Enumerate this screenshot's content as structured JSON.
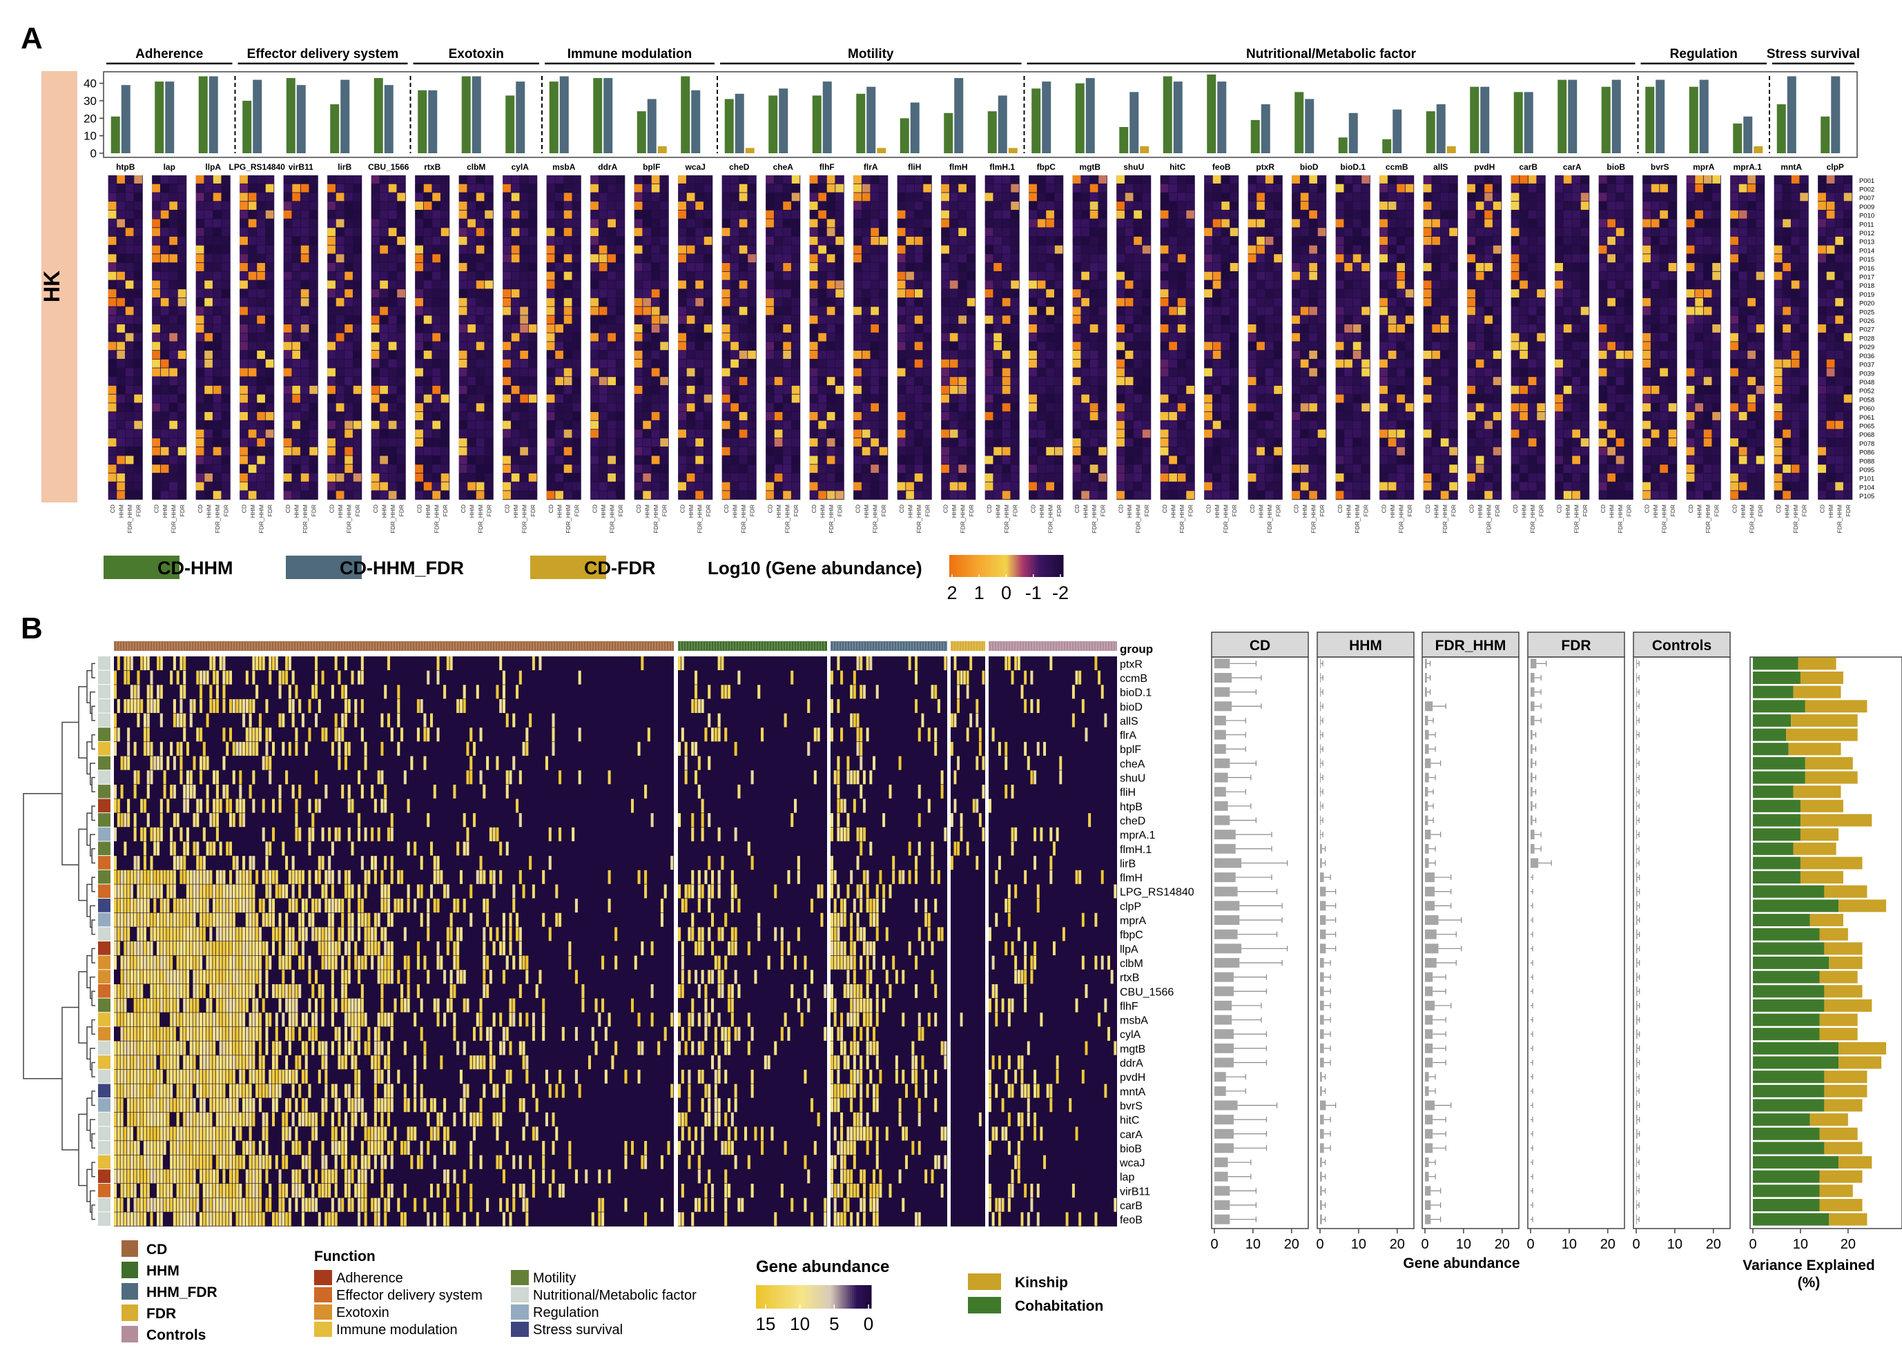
{
  "panel_a": {
    "label": "A",
    "side_label": "HK",
    "categories": [
      {
        "name": "Adherence",
        "count": 3
      },
      {
        "name": "Effector delivery system",
        "count": 4
      },
      {
        "name": "Exotoxin",
        "count": 3
      },
      {
        "name": "Immune modulation",
        "count": 4
      },
      {
        "name": "Motility",
        "count": 7
      },
      {
        "name": "Nutritional/Metabolic factor",
        "count": 14
      },
      {
        "name": "Regulation",
        "count": 3
      },
      {
        "name": "Stress survival",
        "count": 2
      }
    ],
    "y_ticks": [
      "40",
      "30",
      "20",
      "10",
      "0"
    ],
    "patients": [
      "P001",
      "P002",
      "P007",
      "P009",
      "P010",
      "P011",
      "P012",
      "P013",
      "P014",
      "P015",
      "P016",
      "P017",
      "P018",
      "P019",
      "P020",
      "P025",
      "P026",
      "P027",
      "P028",
      "P029",
      "P036",
      "P037",
      "P039",
      "P048",
      "P052",
      "P058",
      "P060",
      "P061",
      "P065",
      "P068",
      "P078",
      "P086",
      "P088",
      "P095",
      "P101",
      "P104",
      "P105"
    ],
    "columns": [
      "CD",
      "HHM",
      "FDR_HHM",
      "FDR"
    ],
    "legend": {
      "series": [
        {
          "label": "CD-HHM",
          "color": "#4a7a2e"
        },
        {
          "label": "CD-HHM_FDR",
          "color": "#4e6a7c"
        },
        {
          "label": "CD-FDR",
          "color": "#c9a227"
        }
      ],
      "scale_title": "Log10 (Gene abundance)",
      "scale_ticks": [
        "2",
        "1",
        "0",
        "-1",
        "-2"
      ]
    }
  },
  "panel_b": {
    "label": "B",
    "group_label": "group",
    "facets": [
      "CD",
      "HHM",
      "FDR_HHM",
      "FDR",
      "Controls"
    ],
    "x_ticks": [
      "0",
      "10",
      "20"
    ],
    "x_title": "Gene abundance",
    "ve_ticks": [
      "0",
      "10",
      "20"
    ],
    "ve_title_1": "Variance Explained",
    "ve_title_2": "(%)",
    "legend_groups": [
      {
        "label": "CD",
        "color": "#a0673e"
      },
      {
        "label": "HHM",
        "color": "#3e6e2a"
      },
      {
        "label": "HHM_FDR",
        "color": "#4f6b80"
      },
      {
        "label": "FDR",
        "color": "#d7ad32"
      },
      {
        "label": "Controls",
        "color": "#b38d9c"
      }
    ],
    "function_title": "Function",
    "functions": [
      {
        "label": "Adherence",
        "color": "#a63b1c"
      },
      {
        "label": "Effector delivery system",
        "color": "#cf6a26"
      },
      {
        "label": "Exotoxin",
        "color": "#d9902e"
      },
      {
        "label": "Immune modulation",
        "color": "#e5bd3b"
      },
      {
        "label": "Motility",
        "color": "#667f38"
      },
      {
        "label": "Nutritional/Metabolic factor",
        "color": "#cfd8d2"
      },
      {
        "label": "Regulation",
        "color": "#93abc0"
      },
      {
        "label": "Stress survival",
        "color": "#3d4580"
      }
    ],
    "abundance_title": "Gene abundance",
    "abundance_ticks": [
      "15",
      "10",
      "5",
      "0"
    ],
    "ve_legend": [
      {
        "label": "Kinship",
        "color": "#c9a227"
      },
      {
        "label": "Cohabitation",
        "color": "#3f7a2c"
      }
    ]
  },
  "chart_data": [
    {
      "type": "bar",
      "categories": [
        "htpB",
        "lap",
        "llpA",
        "LPG_RS14840",
        "virB11",
        "lirB",
        "CBU_1566",
        "rtxB",
        "clbM",
        "cylA",
        "msbA",
        "ddrA",
        "bplF",
        "wcaJ",
        "cheD",
        "cheA",
        "flhF",
        "flrA",
        "fliH",
        "flmH",
        "flmH.1",
        "fbpC",
        "mgtB",
        "shuU",
        "hitC",
        "feoB",
        "ptxR",
        "bioD",
        "bioD.1",
        "ccmB",
        "allS",
        "pvdH",
        "carB",
        "carA",
        "bioB",
        "bvrS",
        "mprA",
        "mprA.1",
        "mntA",
        "clpP"
      ],
      "ylim": [
        0,
        45
      ],
      "series": [
        {
          "name": "CD-HHM",
          "values": [
            21,
            41,
            44,
            30,
            43,
            28,
            43,
            36,
            44,
            33,
            41,
            43,
            24,
            44,
            31,
            33,
            33,
            34,
            20,
            23,
            24,
            37,
            40,
            15,
            44,
            45,
            19,
            35,
            9,
            8,
            24,
            38,
            35,
            42,
            38,
            38,
            38,
            17,
            28,
            21
          ]
        },
        {
          "name": "CD-HHM_FDR",
          "values": [
            39,
            41,
            44,
            42,
            39,
            42,
            39,
            36,
            44,
            41,
            44,
            43,
            31,
            36,
            34,
            37,
            41,
            38,
            29,
            43,
            33,
            41,
            43,
            35,
            41,
            41,
            28,
            31,
            23,
            25,
            28,
            38,
            35,
            42,
            42,
            42,
            42,
            21,
            44,
            44
          ]
        },
        {
          "name": "CD-FDR",
          "values": [
            0,
            0,
            0,
            0,
            0,
            0,
            0,
            0,
            0,
            0,
            0,
            0,
            4,
            0,
            3,
            0,
            0,
            3,
            0,
            0,
            3,
            0,
            0,
            4,
            0,
            0,
            0,
            0,
            0,
            0,
            4,
            0,
            0,
            0,
            0,
            0,
            0,
            4,
            0,
            0
          ]
        }
      ]
    },
    {
      "type": "heatmap",
      "title": "Log10 (Gene abundance)",
      "rows": [
        "P001",
        "P002",
        "P007",
        "P009",
        "P010",
        "P011",
        "P012",
        "P013",
        "P014",
        "P015",
        "P016",
        "P017",
        "P018",
        "P019",
        "P020",
        "P025",
        "P026",
        "P027",
        "P028",
        "P029",
        "P036",
        "P037",
        "P039",
        "P048",
        "P052",
        "P058",
        "P060",
        "P061",
        "P065",
        "P068",
        "P078",
        "P086",
        "P088",
        "P095",
        "P101",
        "P104",
        "P105"
      ],
      "columns_per_gene": [
        "CD",
        "HHM",
        "FDR_HHM",
        "FDR"
      ],
      "value_range": [
        -2,
        2
      ]
    },
    {
      "type": "heatmap",
      "title": "Gene abundance",
      "rows": [
        "ptxR",
        "ccmB",
        "bioD.1",
        "bioD",
        "allS",
        "flrA",
        "bplF",
        "cheA",
        "shuU",
        "fliH",
        "htpB",
        "cheD",
        "mprA.1",
        "flmH.1",
        "lirB",
        "flmH",
        "LPG_RS14840",
        "clpP",
        "mprA",
        "fbpC",
        "llpA",
        "clbM",
        "rtxB",
        "CBU_1566",
        "flhF",
        "msbA",
        "cylA",
        "mgtB",
        "ddrA",
        "pvdH",
        "mntA",
        "bvrS",
        "hitC",
        "carA",
        "bioB",
        "wcaJ",
        "lap",
        "virB11",
        "carB",
        "feoB"
      ],
      "row_function": [
        "Nutritional/Metabolic factor",
        "Nutritional/Metabolic factor",
        "Nutritional/Metabolic factor",
        "Nutritional/Metabolic factor",
        "Nutritional/Metabolic factor",
        "Motility",
        "Immune modulation",
        "Motility",
        "Nutritional/Metabolic factor",
        "Motility",
        "Adherence",
        "Motility",
        "Regulation",
        "Motility",
        "Effector delivery system",
        "Motility",
        "Effector delivery system",
        "Stress survival",
        "Regulation",
        "Nutritional/Metabolic factor",
        "Adherence",
        "Exotoxin",
        "Exotoxin",
        "Effector delivery system",
        "Motility",
        "Immune modulation",
        "Exotoxin",
        "Nutritional/Metabolic factor",
        "Immune modulation",
        "Nutritional/Metabolic factor",
        "Stress survival",
        "Regulation",
        "Nutritional/Metabolic factor",
        "Nutritional/Metabolic factor",
        "Nutritional/Metabolic factor",
        "Immune modulation",
        "Adherence",
        "Effector delivery system",
        "Nutritional/Metabolic factor",
        "Nutritional/Metabolic factor"
      ],
      "groups": [
        "CD",
        "HHM",
        "HHM_FDR",
        "FDR",
        "Controls"
      ],
      "value_range": [
        0,
        15
      ]
    },
    {
      "type": "bar",
      "orientation": "horizontal",
      "xlabel": "Gene abundance",
      "xlim": [
        0,
        22
      ],
      "categories": [
        "ptxR",
        "ccmB",
        "bioD.1",
        "bioD",
        "allS",
        "flrA",
        "bplF",
        "cheA",
        "shuU",
        "fliH",
        "htpB",
        "cheD",
        "mprA.1",
        "flmH.1",
        "lirB",
        "flmH",
        "LPG_RS14840",
        "clpP",
        "mprA",
        "fbpC",
        "llpA",
        "clbM",
        "rtxB",
        "CBU_1566",
        "flhF",
        "msbA",
        "cylA",
        "mgtB",
        "ddrA",
        "pvdH",
        "mntA",
        "bvrS",
        "hitC",
        "carA",
        "bioB",
        "wcaJ",
        "lap",
        "virB11",
        "carB",
        "feoB"
      ],
      "series": [
        {
          "name": "CD",
          "values": [
            4,
            4.5,
            4,
            4.5,
            3,
            3,
            3,
            4,
            3.5,
            3,
            3.5,
            4,
            5.5,
            5.5,
            7,
            5.5,
            6,
            6.5,
            6.5,
            6,
            7,
            6.5,
            5,
            5,
            4.5,
            4.5,
            5,
            5,
            5,
            3,
            3,
            6,
            5,
            5,
            5,
            3.5,
            3.5,
            4,
            4,
            4
          ]
        },
        {
          "name": "HHM",
          "values": [
            0.2,
            0.2,
            0.2,
            0.2,
            0.2,
            0.2,
            0.2,
            0.2,
            0.2,
            0.2,
            0.2,
            0.2,
            0.2,
            0.5,
            0.5,
            1,
            1.5,
            1.5,
            1.5,
            1.5,
            1.5,
            1,
            1,
            1,
            1,
            1,
            1,
            1,
            1,
            0.5,
            0.5,
            1.5,
            1,
            1,
            1,
            0.5,
            0.5,
            0.5,
            0.5,
            0.5
          ]
        },
        {
          "name": "FDR_HHM",
          "values": [
            0.5,
            0.5,
            0.5,
            2,
            0.8,
            1,
            1,
            1.5,
            1,
            0.8,
            0.8,
            0.8,
            1.5,
            1,
            1,
            2.5,
            2.5,
            2.5,
            3.5,
            3,
            3.5,
            3,
            2,
            2,
            2.5,
            2,
            2,
            2,
            2,
            1,
            1,
            2.5,
            2,
            2,
            2,
            1,
            1,
            1.5,
            1.5,
            1.5
          ]
        },
        {
          "name": "FDR",
          "values": [
            1.5,
            1,
            1,
            1,
            1,
            0.5,
            0.5,
            0.5,
            0.5,
            0.5,
            0.5,
            0.5,
            1,
            1,
            2,
            0,
            0,
            0,
            0,
            0,
            0,
            0,
            0,
            0,
            0,
            0,
            0,
            0,
            0,
            0,
            0,
            0,
            0,
            0,
            0,
            0,
            0,
            0,
            0,
            0
          ]
        },
        {
          "name": "Controls",
          "values": [
            0.2,
            0.2,
            0.2,
            0.2,
            0.2,
            0.2,
            0.2,
            0.2,
            0.2,
            0.2,
            0.2,
            0.2,
            0.2,
            0.2,
            0.2,
            0.3,
            0.3,
            0.3,
            0.3,
            0.3,
            0.3,
            0.3,
            0.3,
            0.3,
            0.3,
            0.3,
            0.3,
            0.3,
            0.3,
            0.2,
            0.2,
            0.3,
            0.3,
            0.3,
            0.3,
            0.2,
            0.2,
            0.2,
            0.2,
            0.2
          ]
        }
      ]
    },
    {
      "type": "bar",
      "orientation": "horizontal",
      "stacked": true,
      "xlabel": "Variance Explained (%)",
      "xlim": [
        0,
        28
      ],
      "categories": [
        "ptxR",
        "ccmB",
        "bioD.1",
        "bioD",
        "allS",
        "flrA",
        "bplF",
        "cheA",
        "shuU",
        "fliH",
        "htpB",
        "cheD",
        "mprA.1",
        "flmH.1",
        "lirB",
        "flmH",
        "LPG_RS14840",
        "clpP",
        "mprA",
        "fbpC",
        "llpA",
        "clbM",
        "rtxB",
        "CBU_1566",
        "flhF",
        "msbA",
        "cylA",
        "mgtB",
        "ddrA",
        "pvdH",
        "mntA",
        "bvrS",
        "hitC",
        "carA",
        "bioB",
        "wcaJ",
        "lap",
        "virB11",
        "carB",
        "feoB"
      ],
      "series": [
        {
          "name": "Cohabitation",
          "values": [
            9.5,
            10,
            8.5,
            11,
            8,
            7,
            7.5,
            11,
            11,
            8.5,
            10,
            10,
            10,
            8.5,
            10,
            10,
            15,
            18,
            12,
            14,
            15,
            16,
            14,
            15,
            15,
            14,
            14,
            18,
            18,
            15,
            15,
            15,
            12,
            14,
            15,
            18,
            14,
            14,
            14,
            16
          ]
        },
        {
          "name": "Kinship",
          "values": [
            8,
            9,
            10,
            13,
            14,
            15,
            11,
            10,
            11,
            10,
            9,
            15,
            8,
            9,
            13,
            9,
            9,
            10,
            7,
            6,
            8,
            7,
            8,
            8,
            10,
            8,
            8,
            10,
            9,
            9,
            9,
            8,
            8,
            8,
            8,
            7,
            9,
            7,
            9,
            8
          ]
        }
      ]
    }
  ]
}
